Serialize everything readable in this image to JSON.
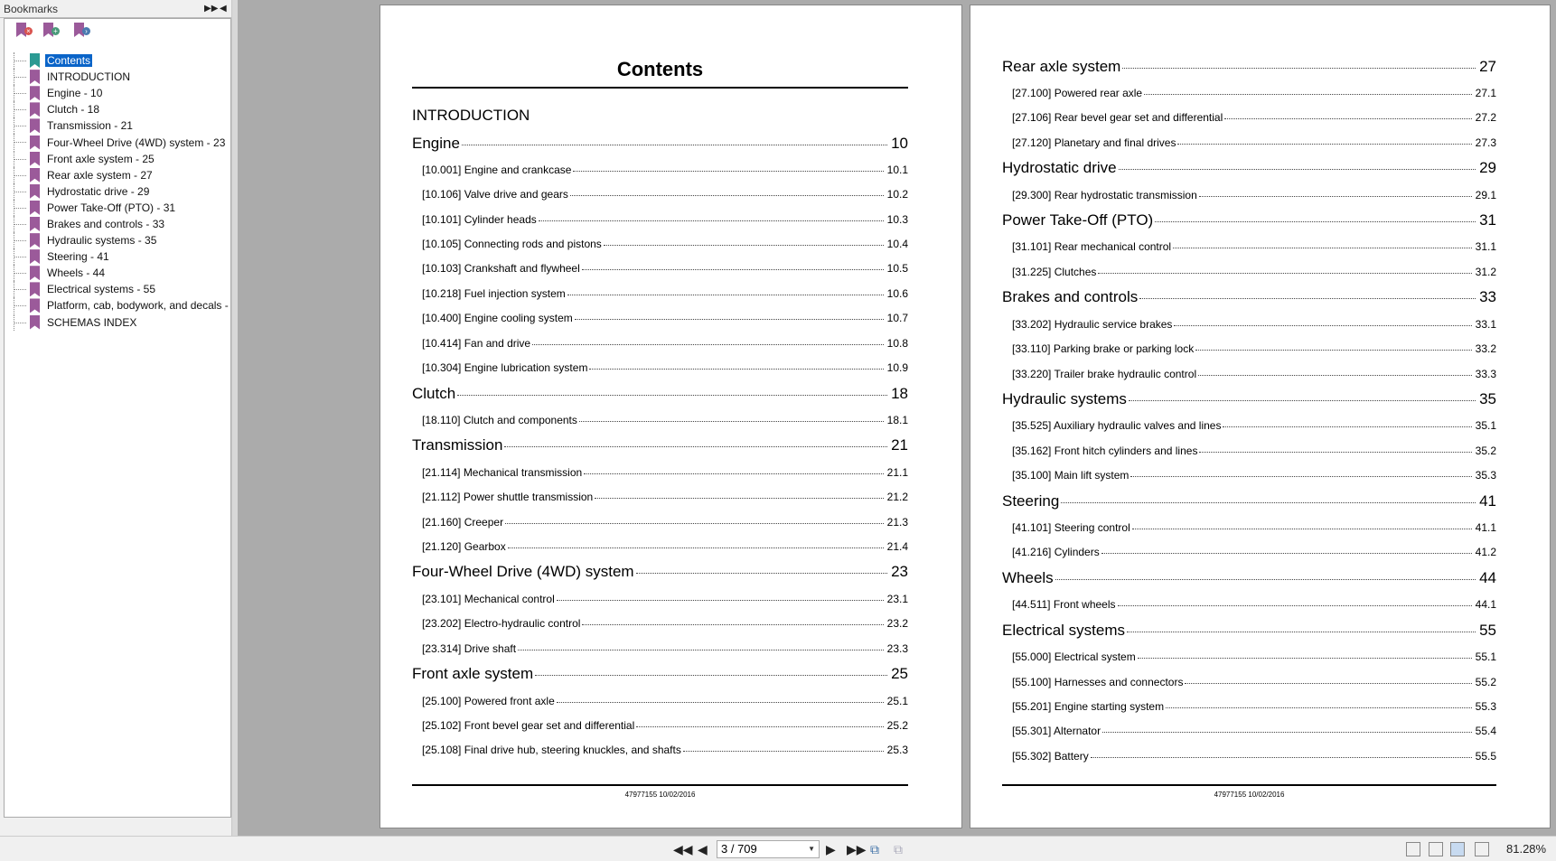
{
  "sidebar": {
    "title": "Bookmarks",
    "items": [
      {
        "label": "Contents",
        "selected": true
      },
      {
        "label": "INTRODUCTION"
      },
      {
        "label": "Engine - 10"
      },
      {
        "label": "Clutch - 18"
      },
      {
        "label": "Transmission - 21"
      },
      {
        "label": "Four-Wheel Drive (4WD) system - 23"
      },
      {
        "label": "Front axle system - 25"
      },
      {
        "label": "Rear axle system - 27"
      },
      {
        "label": "Hydrostatic drive - 29"
      },
      {
        "label": "Power Take-Off (PTO) - 31"
      },
      {
        "label": "Brakes and controls - 33"
      },
      {
        "label": "Hydraulic systems - 35"
      },
      {
        "label": "Steering - 41"
      },
      {
        "label": "Wheels - 44"
      },
      {
        "label": "Electrical systems - 55"
      },
      {
        "label": "Platform, cab, bodywork, and decals -"
      },
      {
        "label": "SCHEMAS INDEX"
      }
    ]
  },
  "page1": {
    "title": "Contents",
    "intro": "INTRODUCTION",
    "sections": [
      {
        "title": "Engine",
        "page": "10",
        "items": [
          {
            "label": "[10.001] Engine and crankcase",
            "page": "10.1"
          },
          {
            "label": "[10.106] Valve drive and gears",
            "page": "10.2"
          },
          {
            "label": "[10.101] Cylinder heads",
            "page": "10.3"
          },
          {
            "label": "[10.105] Connecting rods and pistons",
            "page": "10.4"
          },
          {
            "label": "[10.103] Crankshaft and flywheel",
            "page": "10.5"
          },
          {
            "label": "[10.218] Fuel injection system",
            "page": "10.6"
          },
          {
            "label": "[10.400] Engine cooling system",
            "page": "10.7"
          },
          {
            "label": "[10.414] Fan and drive",
            "page": "10.8"
          },
          {
            "label": "[10.304] Engine lubrication system",
            "page": "10.9"
          }
        ]
      },
      {
        "title": "Clutch",
        "page": "18",
        "items": [
          {
            "label": "[18.110] Clutch and components",
            "page": "18.1"
          }
        ]
      },
      {
        "title": "Transmission",
        "page": "21",
        "items": [
          {
            "label": "[21.114] Mechanical transmission",
            "page": "21.1"
          },
          {
            "label": "[21.112] Power shuttle transmission",
            "page": "21.2"
          },
          {
            "label": "[21.160] Creeper",
            "page": "21.3"
          },
          {
            "label": "[21.120] Gearbox",
            "page": "21.4"
          }
        ]
      },
      {
        "title": "Four-Wheel Drive (4WD) system",
        "page": "23",
        "items": [
          {
            "label": "[23.101] Mechanical control",
            "page": "23.1"
          },
          {
            "label": "[23.202] Electro-hydraulic control",
            "page": "23.2"
          },
          {
            "label": "[23.314] Drive shaft",
            "page": "23.3"
          }
        ]
      },
      {
        "title": "Front axle system",
        "page": "25",
        "items": [
          {
            "label": "[25.100] Powered front axle",
            "page": "25.1"
          },
          {
            "label": "[25.102] Front bevel gear set and differential",
            "page": "25.2"
          },
          {
            "label": "[25.108] Final drive hub, steering knuckles, and shafts",
            "page": "25.3"
          }
        ]
      }
    ],
    "footer": "47977155 10/02/2016"
  },
  "page2": {
    "sections": [
      {
        "title": "Rear axle system",
        "page": "27",
        "items": [
          {
            "label": "[27.100] Powered rear axle",
            "page": "27.1"
          },
          {
            "label": "[27.106] Rear bevel gear set and differential",
            "page": "27.2"
          },
          {
            "label": "[27.120] Planetary and final drives",
            "page": "27.3"
          }
        ]
      },
      {
        "title": "Hydrostatic drive",
        "page": "29",
        "items": [
          {
            "label": "[29.300] Rear hydrostatic transmission",
            "page": "29.1"
          }
        ]
      },
      {
        "title": "Power Take-Off (PTO)",
        "page": "31",
        "items": [
          {
            "label": "[31.101] Rear mechanical control",
            "page": "31.1"
          },
          {
            "label": "[31.225] Clutches",
            "page": "31.2"
          }
        ]
      },
      {
        "title": "Brakes and controls",
        "page": "33",
        "items": [
          {
            "label": "[33.202] Hydraulic service brakes",
            "page": "33.1"
          },
          {
            "label": "[33.110] Parking brake or parking lock",
            "page": "33.2"
          },
          {
            "label": "[33.220] Trailer brake hydraulic control",
            "page": "33.3"
          }
        ]
      },
      {
        "title": "Hydraulic systems",
        "page": "35",
        "items": [
          {
            "label": "[35.525] Auxiliary hydraulic valves and lines",
            "page": "35.1"
          },
          {
            "label": "[35.162] Front hitch cylinders and lines",
            "page": "35.2"
          },
          {
            "label": "[35.100] Main lift system",
            "page": "35.3"
          }
        ]
      },
      {
        "title": "Steering",
        "page": "41",
        "items": [
          {
            "label": "[41.101] Steering control",
            "page": "41.1"
          },
          {
            "label": "[41.216] Cylinders",
            "page": "41.2"
          }
        ]
      },
      {
        "title": "Wheels",
        "page": "44",
        "items": [
          {
            "label": "[44.511] Front wheels",
            "page": "44.1"
          }
        ]
      },
      {
        "title": "Electrical systems",
        "page": "55",
        "items": [
          {
            "label": "[55.000] Electrical system",
            "page": "55.1"
          },
          {
            "label": "[55.100] Harnesses and connectors",
            "page": "55.2"
          },
          {
            "label": "[55.201] Engine starting system",
            "page": "55.3"
          },
          {
            "label": "[55.301] Alternator",
            "page": "55.4"
          },
          {
            "label": "[55.302] Battery",
            "page": "55.5"
          }
        ]
      }
    ],
    "footer": "47977155 10/02/2016"
  },
  "toolbar": {
    "page_value": "3 / 709",
    "zoom": "81.28%",
    "view_mode": "two-page"
  },
  "colors": {
    "bookmark": "#9b5a9a",
    "bookmark_selected": "#2b9a93",
    "selection": "#0a64c8",
    "background": "#ababab"
  }
}
